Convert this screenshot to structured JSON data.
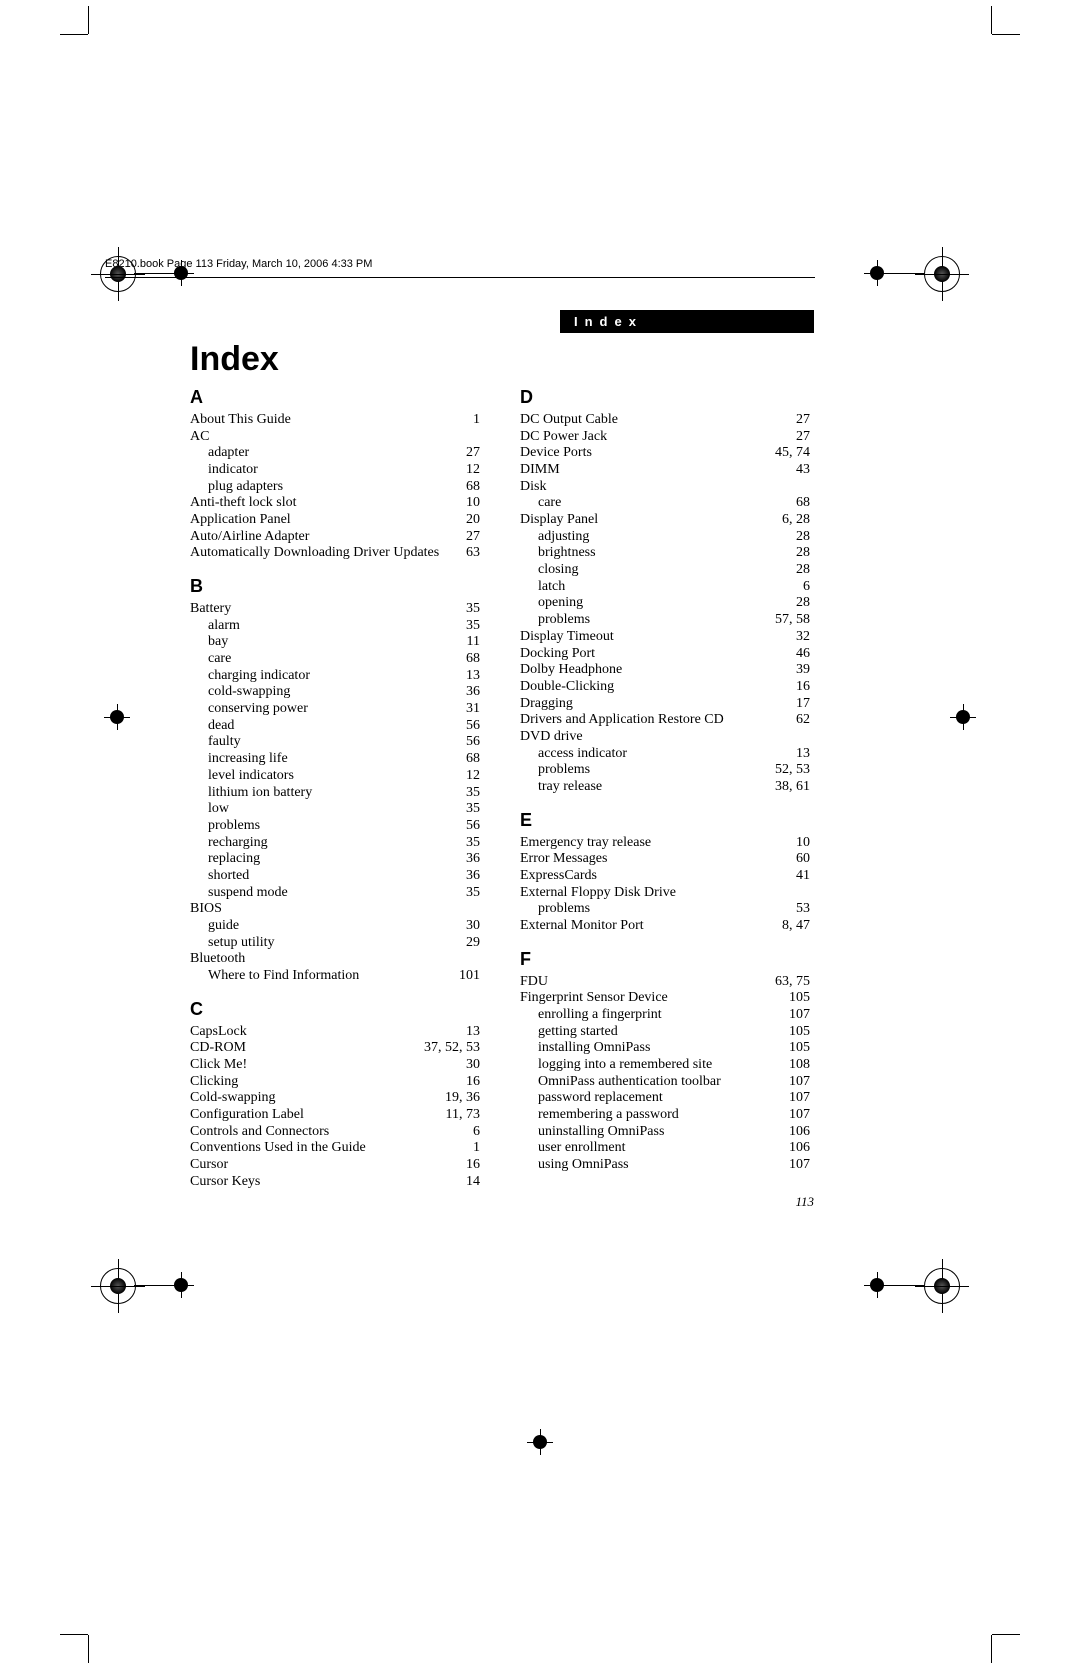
{
  "header_text": "E8210.book  Page 113  Friday, March 10, 2006  4:33 PM",
  "running_head": "Index",
  "title": "Index",
  "page_number": "113",
  "columns": [
    {
      "groups": [
        {
          "letter": "A",
          "items": [
            {
              "term": "About This Guide",
              "page": "1"
            },
            {
              "term": "AC",
              "heading": true,
              "sub": [
                {
                  "term": "adapter",
                  "page": "27"
                },
                {
                  "term": "indicator",
                  "page": "12"
                },
                {
                  "term": "plug adapters",
                  "page": "68"
                }
              ]
            },
            {
              "term": "Anti-theft lock slot",
              "page": "10"
            },
            {
              "term": "Application Panel",
              "page": "20"
            },
            {
              "term": "Auto/Airline Adapter",
              "page": "27"
            },
            {
              "term": "Automatically Downloading Driver Updates",
              "page": "63"
            }
          ]
        },
        {
          "letter": "B",
          "items": [
            {
              "term": "Battery",
              "page": "35",
              "sub": [
                {
                  "term": "alarm",
                  "page": "35"
                },
                {
                  "term": "bay",
                  "page": "11"
                },
                {
                  "term": "care",
                  "page": "68"
                },
                {
                  "term": "charging indicator",
                  "page": "13"
                },
                {
                  "term": "cold-swapping",
                  "page": "36"
                },
                {
                  "term": "conserving power",
                  "page": "31"
                },
                {
                  "term": "dead",
                  "page": "56"
                },
                {
                  "term": "faulty",
                  "page": "56"
                },
                {
                  "term": "increasing life",
                  "page": "68"
                },
                {
                  "term": "level indicators",
                  "page": "12"
                },
                {
                  "term": "lithium ion battery",
                  "page": "35"
                },
                {
                  "term": "low",
                  "page": "35"
                },
                {
                  "term": "problems",
                  "page": "56"
                },
                {
                  "term": "recharging",
                  "page": "35"
                },
                {
                  "term": "replacing",
                  "page": "36"
                },
                {
                  "term": "shorted",
                  "page": "36"
                },
                {
                  "term": "suspend mode",
                  "page": "35"
                }
              ]
            },
            {
              "term": "BIOS",
              "heading": true,
              "sub": [
                {
                  "term": "guide",
                  "page": "30"
                },
                {
                  "term": "setup utility",
                  "page": "29"
                }
              ]
            },
            {
              "term": "Bluetooth",
              "heading": true,
              "sub": [
                {
                  "term": "Where to Find Information",
                  "page": "101"
                }
              ]
            }
          ]
        },
        {
          "letter": "C",
          "items": [
            {
              "term": "CapsLock",
              "page": "13"
            },
            {
              "term": "CD-ROM",
              "page": "37, 52, 53"
            },
            {
              "term": "Click Me!",
              "page": "30"
            },
            {
              "term": "Clicking",
              "page": "16"
            },
            {
              "term": "Cold-swapping",
              "page": "19, 36"
            },
            {
              "term": "Configuration Label",
              "page": "11, 73"
            },
            {
              "term": "Controls and Connectors",
              "page": "6"
            },
            {
              "term": "Conventions Used in the Guide",
              "page": "1"
            },
            {
              "term": "Cursor",
              "page": "16"
            },
            {
              "term": "Cursor Keys",
              "page": "14"
            }
          ]
        }
      ]
    },
    {
      "groups": [
        {
          "letter": "D",
          "items": [
            {
              "term": "DC Output Cable",
              "page": "27"
            },
            {
              "term": "DC Power Jack",
              "page": "27"
            },
            {
              "term": "Device Ports",
              "page": "45, 74"
            },
            {
              "term": "DIMM",
              "page": "43"
            },
            {
              "term": "Disk",
              "heading": true,
              "sub": [
                {
                  "term": "care",
                  "page": "68"
                }
              ]
            },
            {
              "term": "Display Panel",
              "page": "6, 28",
              "sub": [
                {
                  "term": "adjusting",
                  "page": "28"
                },
                {
                  "term": "brightness",
                  "page": "28"
                },
                {
                  "term": "closing",
                  "page": "28"
                },
                {
                  "term": "latch",
                  "page": "6"
                },
                {
                  "term": "opening",
                  "page": "28"
                },
                {
                  "term": "problems",
                  "page": "57, 58"
                }
              ]
            },
            {
              "term": "Display Timeout",
              "page": "32"
            },
            {
              "term": "Docking Port",
              "page": "46"
            },
            {
              "term": "Dolby Headphone",
              "page": "39"
            },
            {
              "term": "Double-Clicking",
              "page": "16"
            },
            {
              "term": "Dragging",
              "page": "17"
            },
            {
              "term": "Drivers and Application Restore CD",
              "page": "62"
            },
            {
              "term": "DVD drive",
              "heading": true,
              "sub": [
                {
                  "term": "access indicator",
                  "page": "13"
                },
                {
                  "term": "problems",
                  "page": "52, 53"
                },
                {
                  "term": "tray release",
                  "page": "38, 61"
                }
              ]
            }
          ]
        },
        {
          "letter": "E",
          "items": [
            {
              "term": "Emergency tray release",
              "page": "10"
            },
            {
              "term": "Error Messages",
              "page": "60"
            },
            {
              "term": "ExpressCards",
              "page": "41"
            },
            {
              "term": "External Floppy Disk Drive",
              "heading": true,
              "sub": [
                {
                  "term": "problems",
                  "page": "53"
                }
              ]
            },
            {
              "term": "External Monitor Port",
              "page": "8, 47"
            }
          ]
        },
        {
          "letter": "F",
          "items": [
            {
              "term": "FDU",
              "page": "63, 75"
            },
            {
              "term": "Fingerprint Sensor Device",
              "page": "105",
              "sub": [
                {
                  "term": "enrolling a fingerprint",
                  "page": "107"
                },
                {
                  "term": "getting started",
                  "page": "105"
                },
                {
                  "term": "installing OmniPass",
                  "page": "105"
                },
                {
                  "term": "logging into a remembered site",
                  "page": "108"
                },
                {
                  "term": "OmniPass authentication toolbar",
                  "page": "107"
                },
                {
                  "term": "password replacement",
                  "page": "107"
                },
                {
                  "term": "remembering a password",
                  "page": "107"
                },
                {
                  "term": "uninstalling OmniPass",
                  "page": "106"
                },
                {
                  "term": "user enrollment",
                  "page": "106"
                },
                {
                  "term": "using OmniPass",
                  "page": "107"
                }
              ]
            }
          ]
        }
      ]
    }
  ]
}
